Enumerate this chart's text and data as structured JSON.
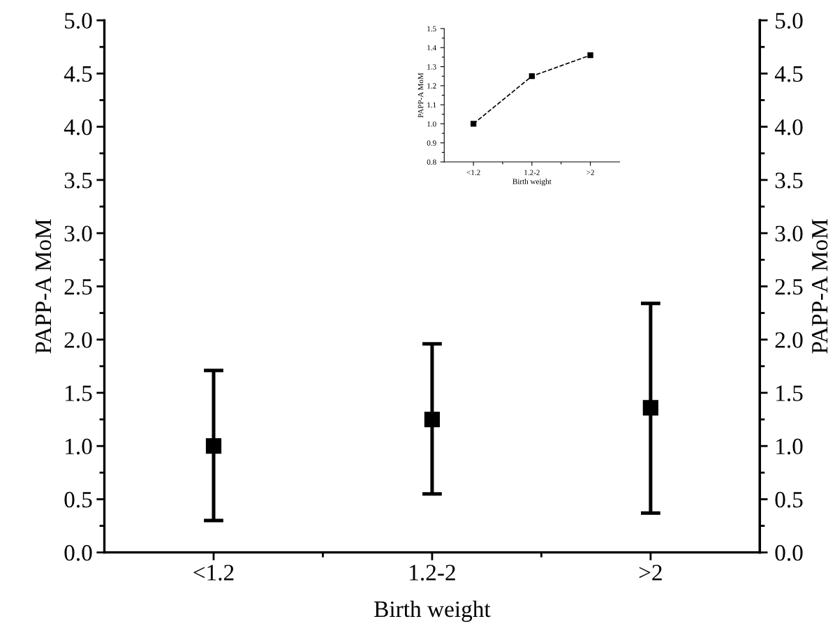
{
  "chart_data": [
    {
      "type": "scatter",
      "xlabel": "Birth weight",
      "ylabel": "PAPP-A MoM",
      "y2label": "PAPP-A MoM",
      "categories": [
        "<1.2",
        "1.2-2",
        ">2"
      ],
      "series": [
        {
          "color": "#000000",
          "values": [
            1.0,
            1.25,
            1.36
          ],
          "errors": [
            [
              0.3,
              1.71
            ],
            [
              0.55,
              1.96
            ],
            [
              0.37,
              2.34
            ]
          ]
        }
      ],
      "ylim": [
        0,
        5
      ],
      "yticks": [
        {
          "value": 0,
          "label": "0.0"
        },
        0.5,
        {
          "value": 1,
          "label": "1.0"
        },
        1.5,
        {
          "value": 2,
          "label": "2.0"
        },
        2.5,
        {
          "value": 3,
          "label": "3.0"
        },
        3.5,
        {
          "value": 4,
          "label": "4.0"
        },
        4.5,
        {
          "value": 5,
          "label": "5.0"
        }
      ],
      "y2lim": [
        0,
        5
      ],
      "y2ticks": [
        {
          "value": 0,
          "label": "0.0"
        },
        0.5,
        {
          "value": 1,
          "label": "1.0"
        },
        1.5,
        {
          "value": 2,
          "label": "2.0"
        },
        2.5,
        {
          "value": 3,
          "label": "3.0"
        },
        3.5,
        {
          "value": 4,
          "label": "4.0"
        },
        4.5,
        {
          "value": 5,
          "label": "5.0"
        }
      ],
      "marker": "square",
      "grid": false,
      "legend": false
    },
    {
      "type": "line",
      "xlabel": "Birth weight",
      "ylabel": "PAPP-A MoM",
      "categories": [
        "<1.2",
        "1.2-2",
        ">2"
      ],
      "series": [
        {
          "color": "#000000",
          "values": [
            1.0,
            1.25,
            1.36
          ]
        }
      ],
      "ylim": [
        0.8,
        1.5
      ],
      "yticks": [
        0.8,
        0.9,
        {
          "value": 1,
          "label": "1.0"
        },
        1.1,
        1.2,
        1.3,
        1.4,
        1.5
      ],
      "marker": "square",
      "line_style": "dashed",
      "grid": false,
      "legend": false
    }
  ]
}
